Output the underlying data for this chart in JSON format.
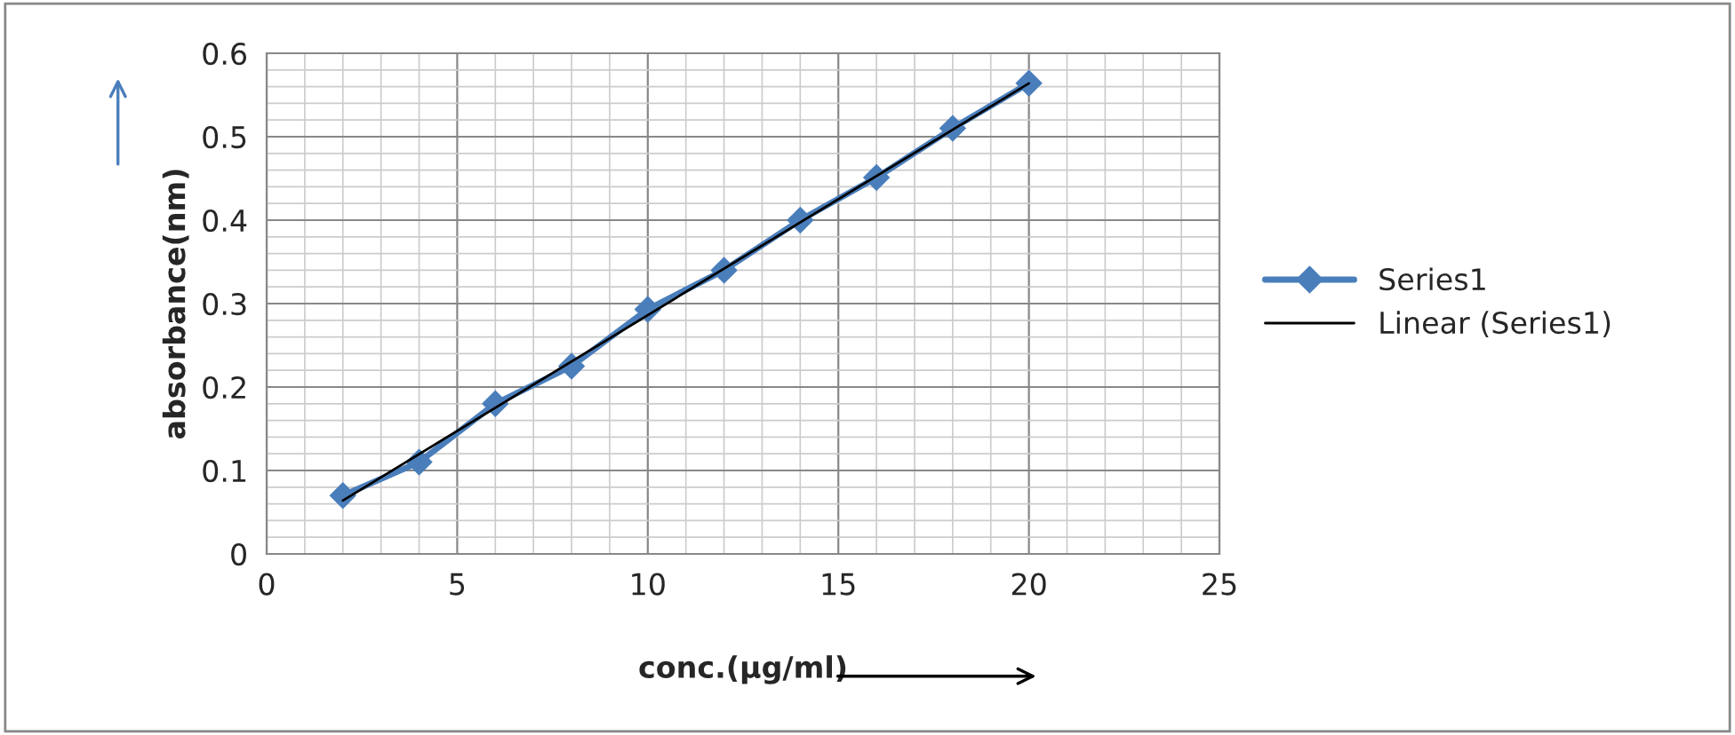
{
  "chart_data": {
    "type": "line",
    "xlabel": "conc.(µg/ml)",
    "ylabel": "absorbance(nm)",
    "xlim": [
      0,
      25
    ],
    "xticks": [
      0,
      5,
      10,
      15,
      20,
      25
    ],
    "ylim": [
      0,
      0.6
    ],
    "yticks": [
      0,
      0.1,
      0.2,
      0.3,
      0.4,
      0.5,
      0.6
    ],
    "grid": true,
    "legend": "right",
    "series": [
      {
        "name": "Series1",
        "color": "#4a7ebb",
        "marker": "diamond",
        "x": [
          2,
          4,
          6,
          8,
          10,
          12,
          14,
          16,
          18,
          20
        ],
        "values": [
          0.07,
          0.11,
          0.18,
          0.225,
          0.293,
          0.34,
          0.4,
          0.451,
          0.51,
          0.564
        ]
      },
      {
        "name": "Linear (Series1)",
        "color": "#000000",
        "marker": "none",
        "x": [
          2,
          20
        ],
        "values": [
          0.064,
          0.564
        ]
      }
    ]
  }
}
